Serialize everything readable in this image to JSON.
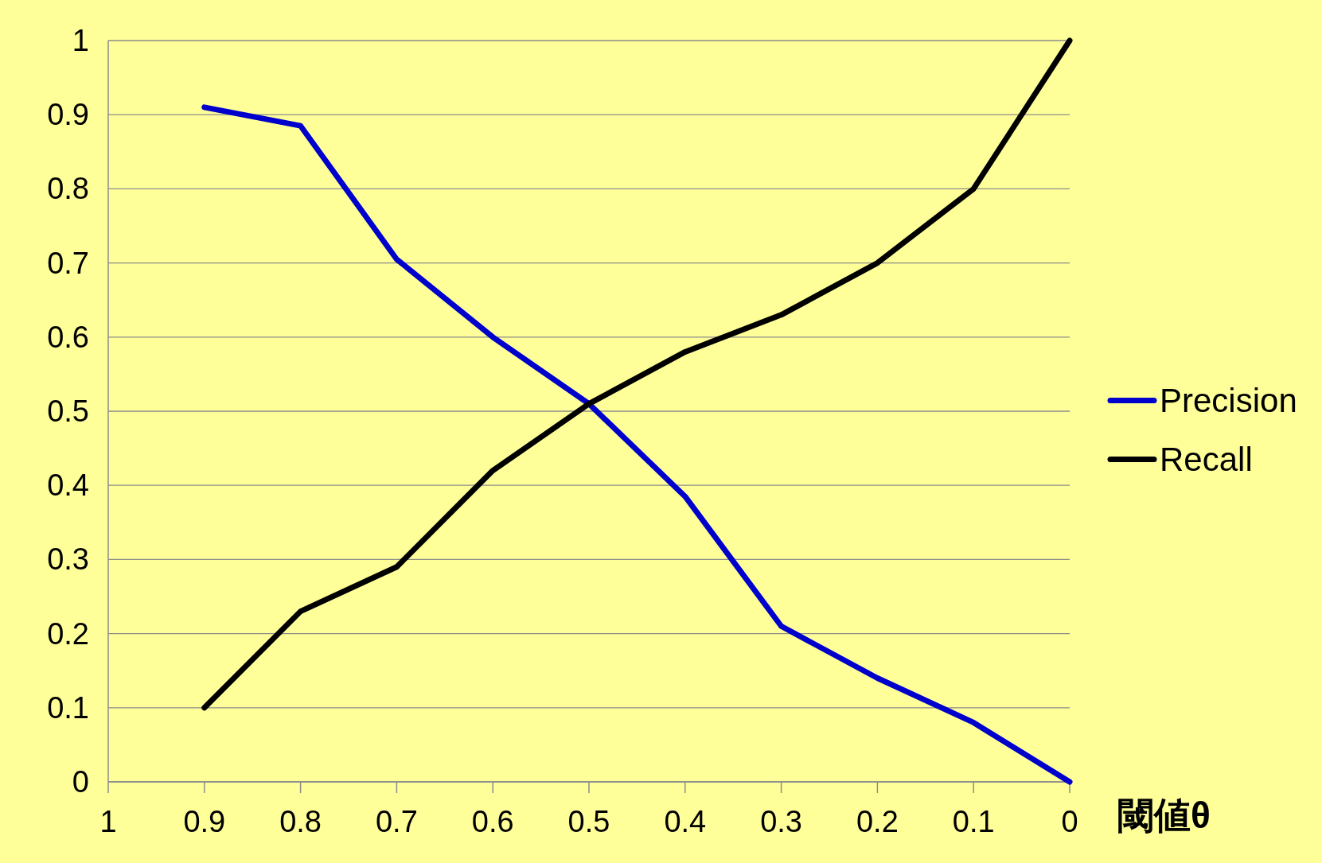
{
  "chart_data": {
    "type": "line",
    "xlabel": "閾値θ",
    "x": [
      0.9,
      0.8,
      0.7,
      0.6,
      0.5,
      0.4,
      0.3,
      0.2,
      0.1,
      0
    ],
    "series": [
      {
        "name": "Precision",
        "color": "#0000cc",
        "values": [
          0.91,
          0.885,
          0.705,
          0.6,
          0.51,
          0.385,
          0.21,
          0.14,
          0.08,
          0
        ]
      },
      {
        "name": "Recall",
        "color": "#000000",
        "values": [
          0.1,
          0.23,
          0.29,
          0.42,
          0.51,
          0.58,
          0.63,
          0.7,
          0.8,
          1.0
        ]
      }
    ],
    "xlim": [
      1,
      0
    ],
    "xticks": [
      1,
      0.9,
      0.8,
      0.7,
      0.6,
      0.5,
      0.4,
      0.3,
      0.2,
      0.1,
      0
    ],
    "ylim": [
      0,
      1
    ],
    "yticks": [
      0,
      0.1,
      0.2,
      0.3,
      0.4,
      0.5,
      0.6,
      0.7,
      0.8,
      0.9,
      1
    ],
    "grid": "y",
    "legend": "right",
    "marker": "none",
    "line_style": "solid"
  }
}
